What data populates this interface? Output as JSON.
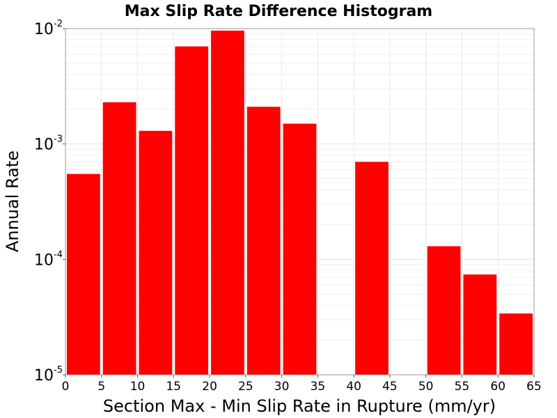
{
  "chart_data": {
    "type": "bar",
    "title": "Max Slip Rate Difference Histogram",
    "xlabel": "Section Max - Min Slip Rate in Rupture (mm/yr)",
    "ylabel": "Annual Rate",
    "xlim": [
      0,
      65
    ],
    "ylim": [
      1e-05,
      0.01
    ],
    "yscale": "log",
    "grid": true,
    "bar_color": "#ff0000",
    "x_ticks": [
      "0",
      "5",
      "10",
      "15",
      "20",
      "25",
      "30",
      "35",
      "40",
      "45",
      "50",
      "55",
      "60",
      "65"
    ],
    "y_ticks": [
      {
        "base": "10",
        "exp": "-5"
      },
      {
        "base": "10",
        "exp": "-4"
      },
      {
        "base": "10",
        "exp": "-3"
      },
      {
        "base": "10",
        "exp": "-2"
      }
    ],
    "bins": [
      {
        "x0": 0,
        "x1": 5,
        "value": 0.00055
      },
      {
        "x0": 5,
        "x1": 10,
        "value": 0.0023
      },
      {
        "x0": 10,
        "x1": 15,
        "value": 0.0013
      },
      {
        "x0": 15,
        "x1": 20,
        "value": 0.007
      },
      {
        "x0": 20,
        "x1": 25,
        "value": 0.0096
      },
      {
        "x0": 25,
        "x1": 30,
        "value": 0.0021
      },
      {
        "x0": 30,
        "x1": 35,
        "value": 0.0015
      },
      {
        "x0": 40,
        "x1": 45,
        "value": 0.0007
      },
      {
        "x0": 50,
        "x1": 55,
        "value": 0.00013
      },
      {
        "x0": 55,
        "x1": 60,
        "value": 7.4e-05
      },
      {
        "x0": 60,
        "x1": 65,
        "value": 3.4e-05
      }
    ]
  }
}
